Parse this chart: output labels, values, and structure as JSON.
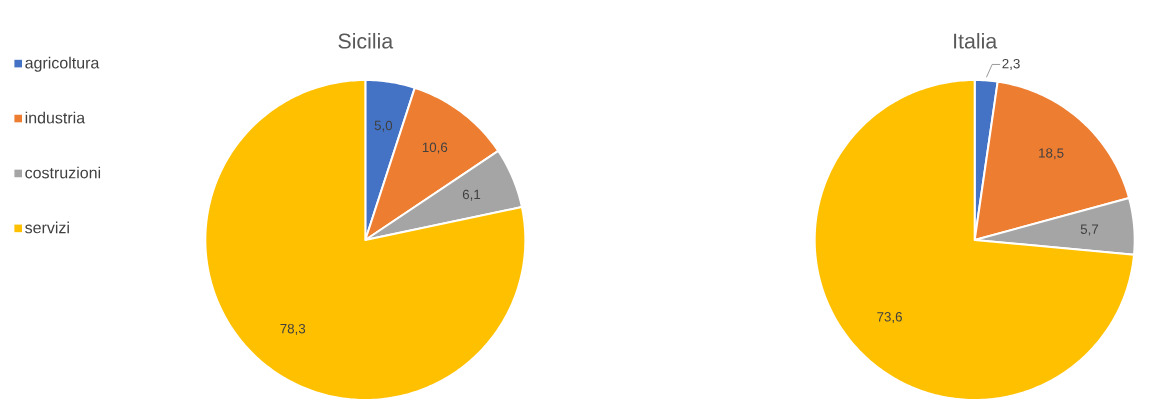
{
  "chart_data": [
    {
      "type": "pie",
      "title": "Sicilia",
      "categories": [
        "agricoltura",
        "industria",
        "costruzioni",
        "servizi"
      ],
      "values": [
        5.0,
        10.6,
        6.1,
        78.3
      ],
      "colors": [
        "#4472c4",
        "#ed7d31",
        "#a5a5a5",
        "#ffc000"
      ],
      "value_labels": [
        "5,0",
        "10,6",
        "6,1",
        "78,3"
      ],
      "legend": "left"
    },
    {
      "type": "pie",
      "title": "Italia",
      "categories": [
        null,
        null,
        null,
        null
      ],
      "values": [
        2.3,
        18.5,
        5.7,
        73.6
      ],
      "colors": [
        "#4472c4",
        "#ed7d31",
        "#a5a5a5",
        "#ffc000"
      ],
      "value_labels": [
        "2,3",
        "18,5",
        "5,7",
        "73,6"
      ]
    }
  ]
}
